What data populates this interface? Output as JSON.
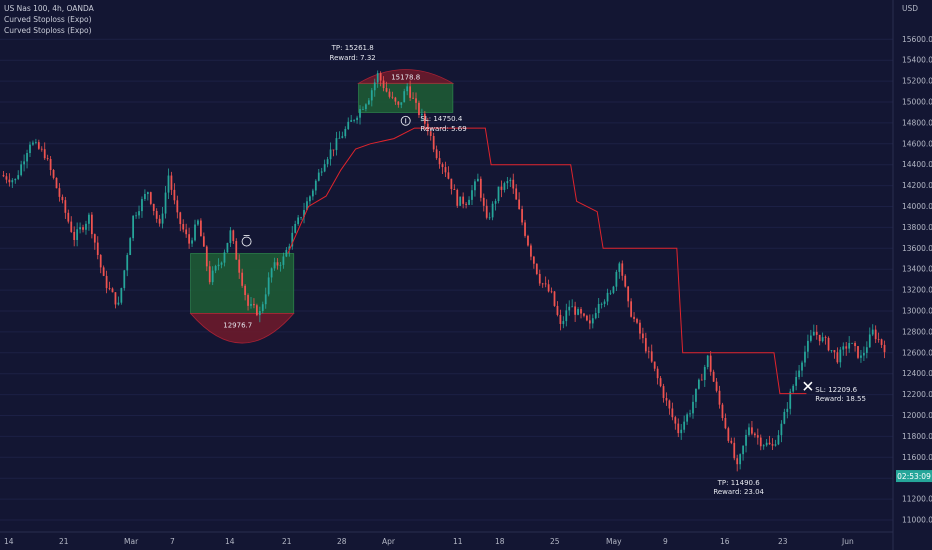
{
  "header": {
    "title": "US Nas 100, 4h, OANDA",
    "indicator1": "Curved Stoploss (Expo)",
    "indicator2": "Curved Stoploss (Expo)"
  },
  "currency": "USD",
  "countdown": "02:53:09",
  "colors": {
    "background": "#131633",
    "bull": "#26a69a",
    "bear": "#ef5350",
    "stoploss": "#e0242c",
    "profit_zone": "#1d5a35",
    "loss_zone": "#6b1a2c",
    "price_tag": "#26a69a"
  },
  "chart_data": {
    "type": "candlestick",
    "symbol": "US Nas 100",
    "interval": "4h",
    "ylim": [
      10900,
      15850
    ],
    "yticks": [
      11000,
      11200,
      11400,
      11600,
      11800,
      12000,
      12200,
      12400,
      12600,
      12800,
      13000,
      13200,
      13400,
      13600,
      13800,
      14000,
      14200,
      14400,
      14600,
      14800,
      15000,
      15200,
      15400,
      15600
    ],
    "xtick_labels": [
      "14",
      "21",
      "Mar",
      "7",
      "14",
      "21",
      "28",
      "Apr",
      "11",
      "18",
      "25",
      "May",
      "9",
      "16",
      "23",
      "Jun"
    ],
    "last_price": 11411,
    "close_path": [
      {
        "t": 0,
        "p": 14300
      },
      {
        "t": 0.5,
        "p": 14250
      },
      {
        "t": 1,
        "p": 14620
      },
      {
        "t": 1.5,
        "p": 14500
      },
      {
        "t": 2,
        "p": 14100
      },
      {
        "t": 2.5,
        "p": 13700
      },
      {
        "t": 3,
        "p": 13900
      },
      {
        "t": 3.5,
        "p": 13300
      },
      {
        "t": 4,
        "p": 13050
      },
      {
        "t": 4.5,
        "p": 13900
      },
      {
        "t": 5,
        "p": 14150
      },
      {
        "t": 5.4,
        "p": 13800
      },
      {
        "t": 5.7,
        "p": 14300
      },
      {
        "t": 6,
        "p": 13900
      },
      {
        "t": 6.4,
        "p": 13650
      },
      {
        "t": 6.7,
        "p": 13850
      },
      {
        "t": 7.1,
        "p": 13300
      },
      {
        "t": 7.5,
        "p": 13500
      },
      {
        "t": 7.8,
        "p": 13750
      },
      {
        "t": 8.1,
        "p": 13400
      },
      {
        "t": 8.4,
        "p": 13050
      },
      {
        "t": 8.8,
        "p": 12980
      },
      {
        "t": 9.2,
        "p": 13400
      },
      {
        "t": 9.6,
        "p": 13500
      },
      {
        "t": 10,
        "p": 13800
      },
      {
        "t": 10.5,
        "p": 14100
      },
      {
        "t": 11,
        "p": 14450
      },
      {
        "t": 11.5,
        "p": 14650
      },
      {
        "t": 12,
        "p": 14850
      },
      {
        "t": 12.5,
        "p": 15050
      },
      {
        "t": 12.8,
        "p": 15261
      },
      {
        "t": 13.2,
        "p": 15050
      },
      {
        "t": 13.5,
        "p": 14950
      },
      {
        "t": 13.8,
        "p": 15150
      },
      {
        "t": 14.1,
        "p": 14950
      },
      {
        "t": 14.5,
        "p": 14750
      },
      {
        "t": 14.8,
        "p": 14500
      },
      {
        "t": 15.1,
        "p": 14350
      },
      {
        "t": 15.5,
        "p": 14050
      },
      {
        "t": 15.8,
        "p": 14050
      },
      {
        "t": 16.2,
        "p": 14250
      },
      {
        "t": 16.5,
        "p": 13850
      },
      {
        "t": 16.9,
        "p": 14150
      },
      {
        "t": 17.3,
        "p": 14250
      },
      {
        "t": 17.7,
        "p": 13850
      },
      {
        "t": 18,
        "p": 13550
      },
      {
        "t": 18.3,
        "p": 13300
      },
      {
        "t": 18.7,
        "p": 13150
      },
      {
        "t": 19,
        "p": 12850
      },
      {
        "t": 19.3,
        "p": 13050
      },
      {
        "t": 19.7,
        "p": 12950
      },
      {
        "t": 20,
        "p": 12850
      },
      {
        "t": 20.3,
        "p": 13100
      },
      {
        "t": 20.7,
        "p": 13150
      },
      {
        "t": 21,
        "p": 13500
      },
      {
        "t": 21.3,
        "p": 13050
      },
      {
        "t": 21.6,
        "p": 12850
      },
      {
        "t": 21.9,
        "p": 12650
      },
      {
        "t": 22.3,
        "p": 12350
      },
      {
        "t": 22.7,
        "p": 12050
      },
      {
        "t": 23,
        "p": 11850
      },
      {
        "t": 23.4,
        "p": 12050
      },
      {
        "t": 23.7,
        "p": 12300
      },
      {
        "t": 24,
        "p": 12550
      },
      {
        "t": 24.4,
        "p": 12100
      },
      {
        "t": 24.7,
        "p": 11800
      },
      {
        "t": 25,
        "p": 11490
      },
      {
        "t": 25.4,
        "p": 11900
      },
      {
        "t": 25.8,
        "p": 11750
      },
      {
        "t": 26.2,
        "p": 11700
      },
      {
        "t": 26.5,
        "p": 11900
      },
      {
        "t": 26.8,
        "p": 12200
      },
      {
        "t": 27.2,
        "p": 12550
      },
      {
        "t": 27.6,
        "p": 12800
      },
      {
        "t": 28,
        "p": 12700
      },
      {
        "t": 28.4,
        "p": 12550
      },
      {
        "t": 28.8,
        "p": 12700
      },
      {
        "t": 29.2,
        "p": 12550
      },
      {
        "t": 29.6,
        "p": 12800
      },
      {
        "t": 30,
        "p": 12650
      }
    ],
    "stoploss_line": [
      {
        "t": 9.7,
        "p": 13550
      },
      {
        "t": 10.4,
        "p": 14000
      },
      {
        "t": 11,
        "p": 14100
      },
      {
        "t": 11.5,
        "p": 14350
      },
      {
        "t": 12,
        "p": 14550
      },
      {
        "t": 12.5,
        "p": 14600
      },
      {
        "t": 13.3,
        "p": 14650
      },
      {
        "t": 14,
        "p": 14750
      },
      {
        "t": 14.4,
        "p": 14750
      },
      {
        "t": 16.4,
        "p": 14750
      },
      {
        "t": 16.6,
        "p": 14400
      },
      {
        "t": 19.3,
        "p": 14400
      },
      {
        "t": 19.5,
        "p": 14050
      },
      {
        "t": 20.2,
        "p": 13950
      },
      {
        "t": 20.4,
        "p": 13600
      },
      {
        "t": 22.9,
        "p": 13600
      },
      {
        "t": 23.1,
        "p": 12600
      },
      {
        "t": 26.2,
        "p": 12600
      },
      {
        "t": 26.4,
        "p": 12210
      },
      {
        "t": 27.3,
        "p": 12210
      }
    ],
    "trades": [
      {
        "entry_label": "12976.7",
        "tp_label": "TP: 15261.8",
        "tp_reward": "Reward: 7.32",
        "entry_t": 8.2,
        "bottom_price": 12976.7,
        "box_top": 13550,
        "curve_bottom": 12700
      },
      {
        "entry_label": "15178.8",
        "sl_label": "SL: 14750.4",
        "sl_reward": "Reward: 5.69",
        "box_top": 15178.8,
        "box_bottom": 14900
      },
      {
        "sl_label2": "SL: 12209.6",
        "sl_reward2": "Reward: 18.55",
        "tp_label2": "TP: 11490.6",
        "tp_reward2": "Reward: 23.04"
      }
    ]
  }
}
